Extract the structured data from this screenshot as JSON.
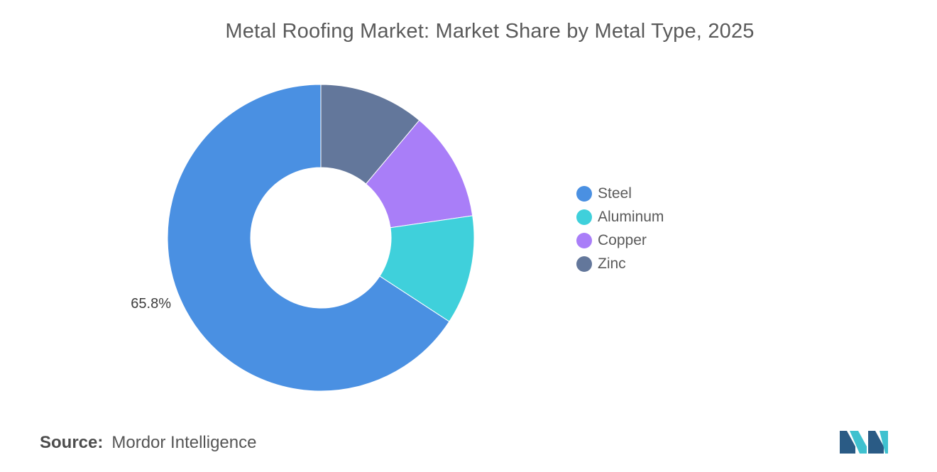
{
  "chart_data": {
    "type": "pie",
    "title": "Metal Roofing Market: Market Share by Metal Type, 2025",
    "categories": [
      "Steel",
      "Aluminum",
      "Copper",
      "Zinc"
    ],
    "values": [
      65.8,
      11.5,
      11.6,
      11.1
    ],
    "data_labels": [
      "65.8%",
      "",
      "",
      ""
    ],
    "colors": [
      "#4a90e2",
      "#3fd0db",
      "#a97ef8",
      "#63779b"
    ],
    "donut": true,
    "legend_position": "right"
  },
  "source": {
    "label": "Source:",
    "value": "Mordor Intelligence"
  },
  "logo": {
    "icon": "mordor-intelligence-logo",
    "colors": [
      "#2a5b85",
      "#3fc1cf"
    ]
  }
}
